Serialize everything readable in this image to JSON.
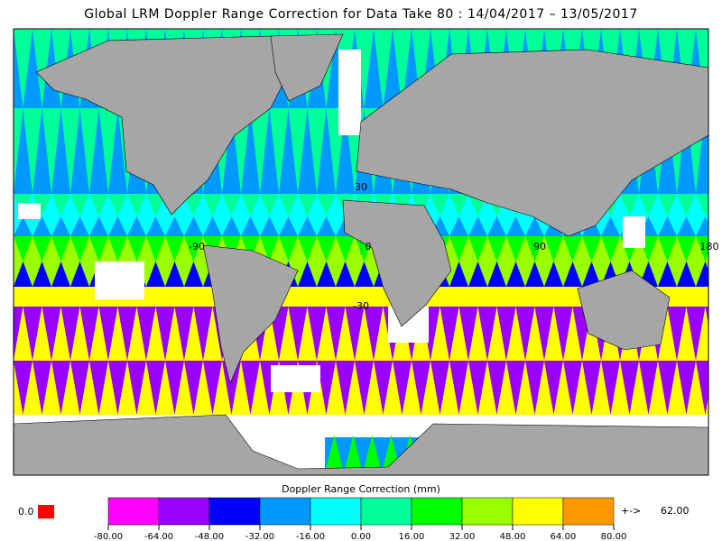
{
  "title": "Global LRM Doppler Range Correction for Data Take 80 : 14/04/2017 – 13/05/2017",
  "map": {
    "lon_ticks": [
      -90,
      0,
      90,
      180
    ],
    "lat_ticks": [
      30,
      -30
    ]
  },
  "colorbar": {
    "label": "Doppler Range Correction (mm)",
    "colors": [
      "#ff00ff",
      "#9900ff",
      "#0000ff",
      "#0099ff",
      "#00ffff",
      "#00ff99",
      "#00ff00",
      "#99ff00",
      "#ffff00",
      "#ff9900"
    ],
    "ticks": [
      {
        "value": -80,
        "label": "-80.00"
      },
      {
        "value": -64,
        "label": "-64.00"
      },
      {
        "value": -48,
        "label": "-48.00"
      },
      {
        "value": -32,
        "label": "-32.00"
      },
      {
        "value": -16,
        "label": "-16.00"
      },
      {
        "value": 0,
        "label": "0.00"
      },
      {
        "value": 16,
        "label": "16.00"
      },
      {
        "value": 32,
        "label": "32.00"
      },
      {
        "value": 48,
        "label": "48.00"
      },
      {
        "value": 64,
        "label": "64.00"
      },
      {
        "value": 80,
        "label": "80.00"
      }
    ]
  },
  "missing": {
    "label": "0.0",
    "color": "#ff0000"
  },
  "overflow": {
    "arrow": "+->",
    "label": "62.00",
    "color": "#ff9900"
  }
}
